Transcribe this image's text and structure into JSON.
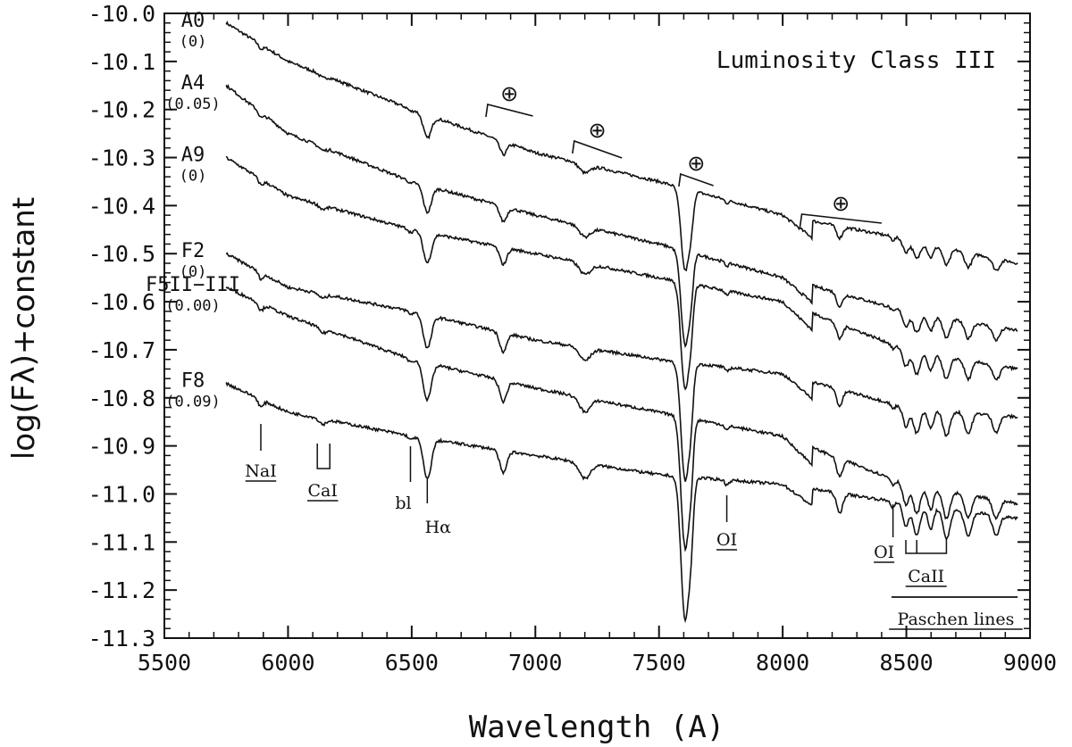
{
  "chart_data": {
    "type": "line",
    "title": "Luminosity Class III",
    "xlabel": "Wavelength (A)",
    "ylabel": "log(Fλ)+constant",
    "xlim": [
      5500,
      9000
    ],
    "ylim": [
      -11.3,
      -10.0
    ],
    "x_ticks": [
      "5500",
      "6000",
      "6500",
      "7000",
      "7500",
      "8000",
      "8500",
      "9000"
    ],
    "y_ticks": [
      "-10.0",
      "-10.1",
      "-10.2",
      "-10.3",
      "-10.4",
      "-10.5",
      "-10.6",
      "-10.7",
      "-10.8",
      "-10.9",
      "-11.0",
      "-11.1",
      "-11.2",
      "-11.3"
    ],
    "grid": false,
    "legend": "none",
    "series": [
      {
        "name": "A0",
        "sub": "(0)",
        "x": [
          5750,
          6000,
          6500,
          7000,
          7500,
          8000,
          8500,
          8950
        ],
        "y": [
          -10.02,
          -10.1,
          -10.2,
          -10.29,
          -10.35,
          -10.42,
          -10.47,
          -10.52
        ]
      },
      {
        "name": "A4",
        "sub": "(0.05)",
        "x": [
          5750,
          6000,
          6500,
          7000,
          7500,
          8000,
          8500,
          8950
        ],
        "y": [
          -10.15,
          -10.25,
          -10.35,
          -10.42,
          -10.48,
          -10.55,
          -10.62,
          -10.66
        ]
      },
      {
        "name": "A9",
        "sub": "(0)",
        "x": [
          5750,
          6000,
          6500,
          7000,
          7500,
          8000,
          8500,
          8950
        ],
        "y": [
          -10.3,
          -10.38,
          -10.45,
          -10.5,
          -10.55,
          -10.6,
          -10.7,
          -10.74
        ]
      },
      {
        "name": "F2",
        "sub": "(0)",
        "x": [
          5750,
          6000,
          6500,
          7000,
          7500,
          8000,
          8500,
          8950
        ],
        "y": [
          -10.5,
          -10.57,
          -10.62,
          -10.68,
          -10.72,
          -10.75,
          -10.82,
          -10.84
        ]
      },
      {
        "name": "F5II−III",
        "sub": "(0.00)",
        "x": [
          5750,
          6000,
          6500,
          7000,
          7500,
          8000,
          8500,
          8950
        ],
        "y": [
          -10.57,
          -10.63,
          -10.72,
          -10.78,
          -10.83,
          -10.88,
          -10.98,
          -11.02
        ]
      },
      {
        "name": "F8",
        "sub": "(0.09)",
        "x": [
          5750,
          6000,
          6500,
          7000,
          7500,
          8000,
          8500,
          8950
        ],
        "y": [
          -10.77,
          -10.83,
          -10.88,
          -10.92,
          -10.96,
          -10.98,
          -11.02,
          -11.05
        ]
      }
    ],
    "annotations": {
      "lines": [
        {
          "text": "NaI",
          "x": 5890,
          "underline": true
        },
        {
          "text": "CaI",
          "x": 6140,
          "underline": true
        },
        {
          "text": "bl",
          "x": 6495,
          "underline": false
        },
        {
          "text": "Hα",
          "x": 6563,
          "underline": false
        },
        {
          "text": "OI",
          "x": 7774,
          "underline": true
        },
        {
          "text": "OI",
          "x": 8446,
          "underline": true
        },
        {
          "text": "CaII",
          "x": 8580,
          "underline": true
        },
        {
          "text": "Paschen lines",
          "x": 8700,
          "underline": true
        }
      ],
      "telluric_symbol": "⊕",
      "telluric_bands": [
        [
          6800,
          6990
        ],
        [
          7150,
          7350
        ],
        [
          7580,
          7720
        ],
        [
          8070,
          8400
        ]
      ]
    }
  }
}
